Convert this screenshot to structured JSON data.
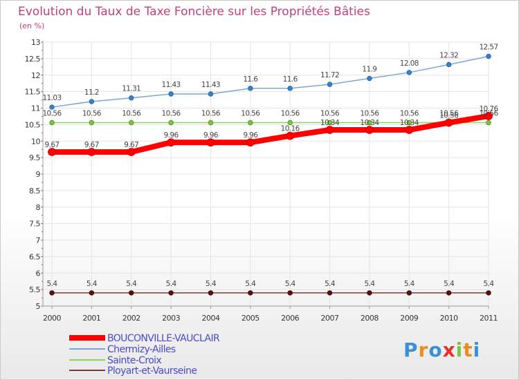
{
  "chart_data": {
    "type": "line",
    "title": "Evolution du Taux de Taxe Foncière sur les Propriétés Bâties",
    "subtitle": "(en %)",
    "xlabel": "",
    "ylabel": "",
    "categories": [
      "2000",
      "2001",
      "2002",
      "2003",
      "2004",
      "2005",
      "2006",
      "2007",
      "2008",
      "2009",
      "2010",
      "2011"
    ],
    "ylim": [
      5,
      13
    ],
    "ytick_labels": [
      "5",
      "5.5",
      "6",
      "6.5",
      "7",
      "7.5",
      "8",
      "8.5",
      "9",
      "9.5",
      "10",
      "10.5",
      "11",
      "11.5",
      "12",
      "12.5",
      "13"
    ],
    "legend_position": "bottom-left",
    "series": [
      {
        "name": "BOUCONVILLE-VAUCLAIR",
        "color": "#ff0000",
        "values": [
          9.67,
          9.67,
          9.67,
          9.96,
          9.96,
          9.96,
          10.16,
          10.34,
          10.34,
          10.34,
          10.56,
          10.76
        ],
        "labels": [
          "9.67",
          "9.67",
          "9.67",
          "9.96",
          "9.96",
          "9.96",
          "10.16",
          "10.34",
          "10.34",
          "10.34",
          "10.56",
          "10.76"
        ]
      },
      {
        "name": "Chermizy-Ailles",
        "color": "#7aa6d6",
        "values": [
          11.03,
          11.2,
          11.31,
          11.43,
          11.43,
          11.6,
          11.6,
          11.72,
          11.9,
          12.08,
          12.32,
          12.57
        ],
        "labels": [
          "11.03",
          "11.2",
          "11.31",
          "11.43",
          "11.43",
          "11.6",
          "11.6",
          "11.72",
          "11.9",
          "12.08",
          "12.32",
          "12.57"
        ]
      },
      {
        "name": "Sainte-Croix",
        "color": "#90d060",
        "values": [
          10.56,
          10.56,
          10.56,
          10.56,
          10.56,
          10.56,
          10.56,
          10.56,
          10.56,
          10.56,
          10.56,
          10.56
        ],
        "labels": [
          "10.56",
          "10.56",
          "10.56",
          "10.56",
          "10.56",
          "10.56",
          "10.56",
          "10.56",
          "10.56",
          "10.56",
          "10.56",
          "10.56"
        ]
      },
      {
        "name": "Ployart-et-Vaurseine",
        "color": "#7a3a3a",
        "values": [
          5.4,
          5.4,
          5.4,
          5.4,
          5.4,
          5.4,
          5.4,
          5.4,
          5.4,
          5.4,
          5.4,
          5.4
        ],
        "labels": [
          "5.4",
          "5.4",
          "5.4",
          "5.4",
          "5.4",
          "5.4",
          "5.4",
          "5.4",
          "5.4",
          "5.4",
          "5.4",
          "5.4"
        ]
      }
    ]
  },
  "brand": {
    "text": "Proxiti"
  }
}
